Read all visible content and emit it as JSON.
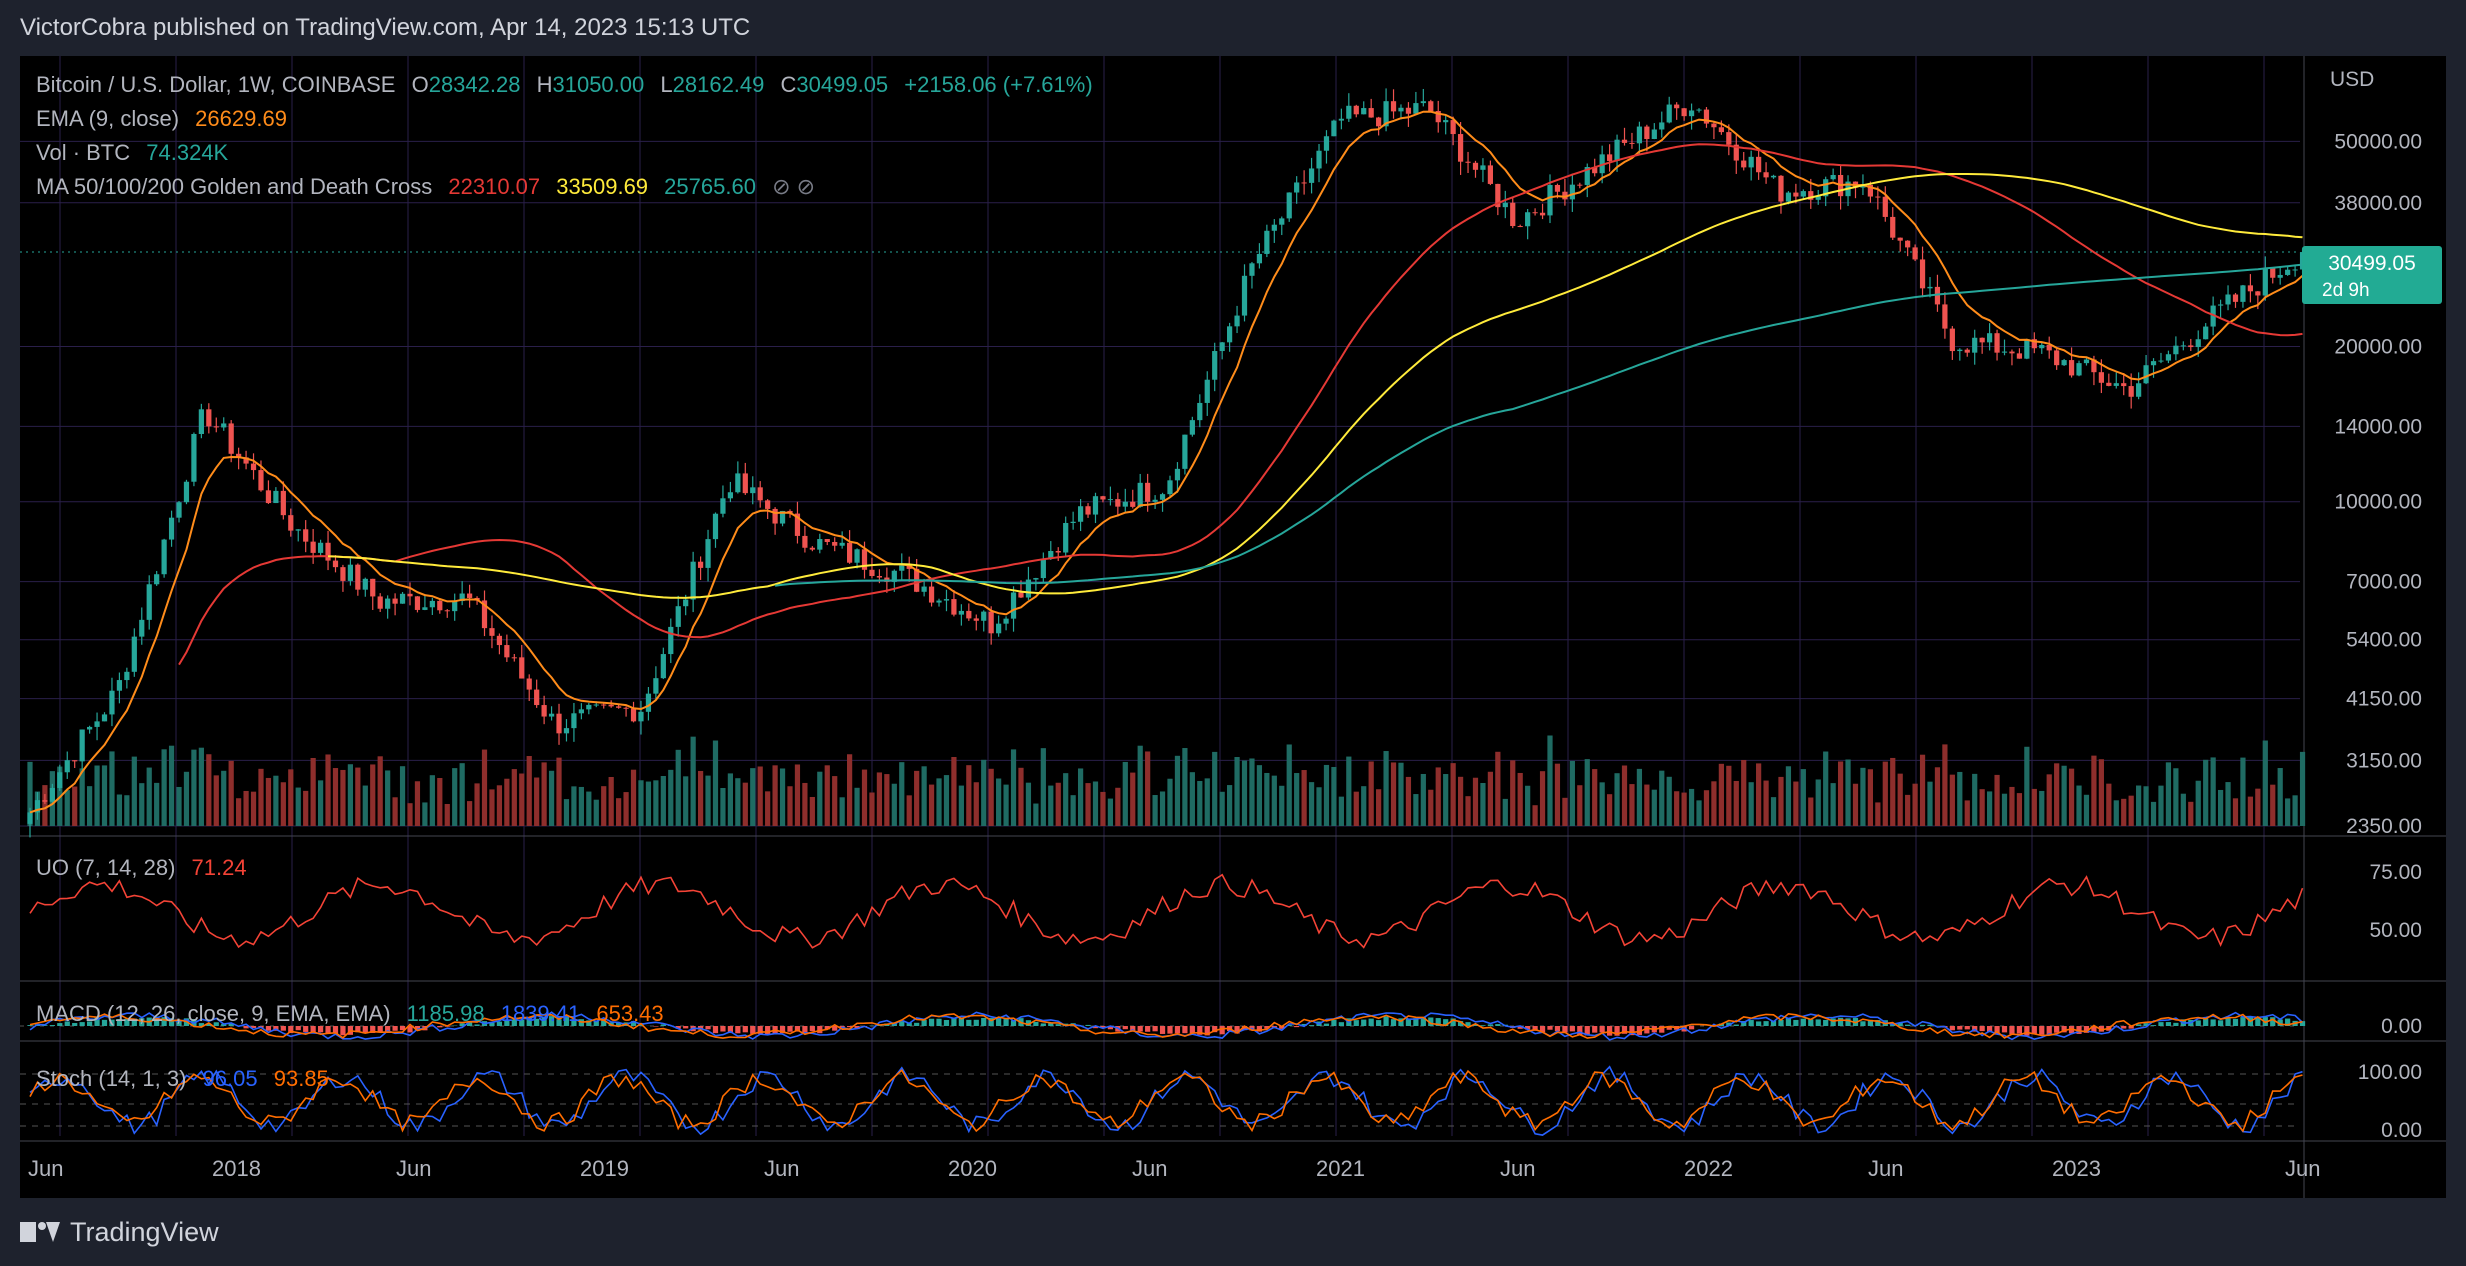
{
  "header": {
    "published": "VictorCobra published on TradingView.com, Apr 14, 2023 15:13 UTC"
  },
  "footer": {
    "brand": "TradingView"
  },
  "colors": {
    "up": "#26a69a",
    "down": "#ef5350",
    "ema": "#ff8c1a",
    "ma50": "#e53935",
    "ma100": "#ffeb3b",
    "ma200": "#26a69a",
    "uo": "#f44336",
    "macd": "#2962ff",
    "signal": "#ff6d00",
    "stochK": "#2962ff",
    "stochD": "#ff6d00",
    "grid": "#2a1f4a",
    "accent": "#22ab94"
  },
  "legend": {
    "symbol": "Bitcoin / U.S. Dollar, 1W, COINBASE",
    "o_label": "O",
    "o": "28342.28",
    "h_label": "H",
    "h": "31050.00",
    "l_label": "L",
    "l": "28162.49",
    "c_label": "C",
    "c": "30499.05",
    "change": "+2158.06 (+7.61%)",
    "ema_label": "EMA (9, close)",
    "ema_val": "26629.69",
    "vol_label": "Vol · BTC",
    "vol_val": "74.324K",
    "ma_label": "MA 50/100/200 Golden and Death Cross",
    "ma50_val": "22310.07",
    "ma100_val": "33509.69",
    "ma200_val": "25765.60",
    "ma_icons": "⊘ ⊘",
    "uo_label": "UO (7, 14, 28)",
    "uo_val": "71.24",
    "macd_label": "MACD (12, 26, close, 9, EMA, EMA)",
    "macd_v1": "1185.98",
    "macd_v2": "1839.41",
    "macd_v3": "653.43",
    "stoch_label": "Stoch (14, 1, 3)",
    "stoch_k": "96.05",
    "stoch_d": "93.85"
  },
  "price_badge": {
    "price": "30499.05",
    "countdown": "2d 9h"
  },
  "axis": {
    "currency": "USD",
    "price_ticks": [
      "50000.00",
      "38000.00",
      "30499.05",
      "20000.00",
      "14000.00",
      "10000.00",
      "7000.00",
      "5400.00",
      "4150.00",
      "3150.00",
      "2350.00"
    ],
    "uo_ticks": [
      "75.00",
      "50.00"
    ],
    "macd_ticks": [
      "0.00"
    ],
    "stoch_ticks": [
      "100.00",
      "0.00"
    ],
    "time_ticks": [
      "Jun",
      "2018",
      "Jun",
      "2019",
      "Jun",
      "2020",
      "Jun",
      "2021",
      "Jun",
      "2022",
      "Jun",
      "2023",
      "Jun"
    ]
  },
  "chart_data": {
    "type": "line",
    "title": "Bitcoin / U.S. Dollar, 1W, COINBASE",
    "y_scale": "log",
    "ylim": [
      2350,
      70000
    ],
    "x": [
      "2017-06",
      "2017-09",
      "2017-12",
      "2018-02",
      "2018-06",
      "2018-09",
      "2018-12",
      "2019-03",
      "2019-06",
      "2019-09",
      "2019-12",
      "2020-03",
      "2020-06",
      "2020-09",
      "2020-12",
      "2021-02",
      "2021-04",
      "2021-06",
      "2021-08",
      "2021-11",
      "2022-01",
      "2022-04",
      "2022-06",
      "2022-09",
      "2022-11",
      "2023-01",
      "2023-04"
    ],
    "series": [
      {
        "name": "Close",
        "values": [
          2500,
          4300,
          15000,
          9000,
          6400,
          6500,
          3700,
          4000,
          11000,
          8300,
          7200,
          5800,
          9500,
          10800,
          29000,
          55000,
          58000,
          35000,
          46000,
          60000,
          40000,
          42000,
          20500,
          19500,
          16500,
          23000,
          30499
        ]
      }
    ],
    "indicators": {
      "ema": "EMA (9, close)",
      "ma": [
        "22310.07",
        "33509.69",
        "25765.60"
      ],
      "volume": "Vol · BTC",
      "uo": "UO (7, 14, 28)",
      "macd": "MACD (12, 26, close, 9, EMA, EMA)",
      "stoch": "Stoch (14, 1, 3)"
    },
    "legend": "top-left",
    "grid": true
  }
}
